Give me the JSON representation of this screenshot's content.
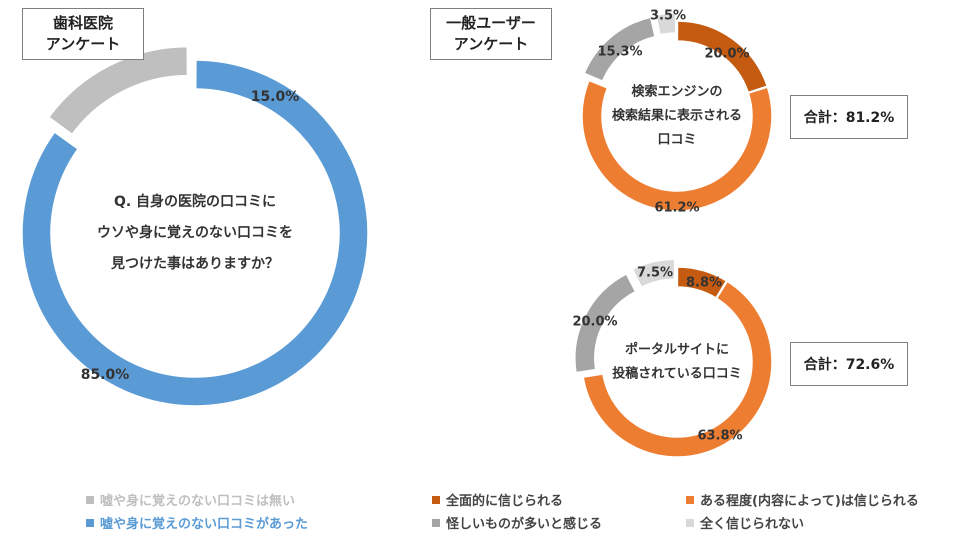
{
  "left_chart": {
    "title_line1": "歯科医院",
    "title_line2": "アンケート",
    "center_lines": [
      "Q. 自身の医院の口コミに",
      "ウソや身に覚えのない口コミを",
      "見つけた事はありますか？"
    ]
  },
  "right_section": {
    "title_line1": "一般ユーザー",
    "title_line2": "アンケート"
  },
  "chart_top_right": {
    "center_lines": [
      "検索エンジンの",
      "検索結果に表示される",
      "口コミ"
    ],
    "total_label": "合計：81.2%"
  },
  "chart_bottom_right": {
    "center_lines": [
      "ポータルサイトに",
      "投稿されている口コミ"
    ],
    "total_label": "合計：72.6%"
  },
  "colors": {
    "blue": "#5b9bd5",
    "light_gray": "#bfbfbf",
    "dark_orange": "#c55a11",
    "orange": "#ed7d31",
    "gray": "#a5a5a5",
    "very_light_gray": "#d9d9d9"
  },
  "legend": {
    "left": [
      {
        "label": "嘘や身に覚えのない口コミは無い",
        "color": "#bfbfbf"
      },
      {
        "label": "嘘や身に覚えのない口コミがあった",
        "color": "#5b9bd5"
      }
    ],
    "right": [
      {
        "label": "全面的に信じられる",
        "color": "#c55a11"
      },
      {
        "label": "ある程度(内容によって)は信じられる",
        "color": "#ed7d31"
      },
      {
        "label": "怪しいものが多いと感じる",
        "color": "#a5a5a5"
      },
      {
        "label": "全く信じられない",
        "color": "#d9d9d9"
      }
    ]
  },
  "chart_data": [
    {
      "type": "pie",
      "variant": "donut",
      "slices": [
        {
          "label": "嘘や身に覚えのない口コミがあった",
          "value": 85.0,
          "value_label": "85.0%",
          "color": "#5b9bd5"
        },
        {
          "label": "嘘や身に覚えのない口コミは無い",
          "value": 15.0,
          "value_label": "15.0%",
          "color": "#bfbfbf",
          "exploded": true
        }
      ]
    },
    {
      "type": "pie",
      "variant": "donut",
      "slices": [
        {
          "label": "全面的に信じられる",
          "value": 20.0,
          "value_label": "20.0%",
          "color": "#c55a11"
        },
        {
          "label": "ある程度(内容によって)は信じられる",
          "value": 61.2,
          "value_label": "61.2%",
          "color": "#ed7d31"
        },
        {
          "label": "怪しいものが多いと感じる",
          "value": 15.3,
          "value_label": "15.3%",
          "color": "#a5a5a5",
          "exploded": true
        },
        {
          "label": "全く信じられない",
          "value": 3.5,
          "value_label": "3.5%",
          "color": "#d9d9d9",
          "exploded": true
        }
      ]
    },
    {
      "type": "pie",
      "variant": "donut",
      "slices": [
        {
          "label": "全面的に信じられる",
          "value": 8.8,
          "value_label": "8.8%",
          "color": "#c55a11"
        },
        {
          "label": "ある程度(内容によって)は信じられる",
          "value": 63.8,
          "value_label": "63.8%",
          "color": "#ed7d31"
        },
        {
          "label": "怪しいものが多いと感じる",
          "value": 20.0,
          "value_label": "20.0%",
          "color": "#a5a5a5",
          "exploded": true
        },
        {
          "label": "全く信じられない",
          "value": 7.5,
          "value_label": "7.5%",
          "color": "#d9d9d9",
          "exploded": true
        }
      ]
    }
  ]
}
